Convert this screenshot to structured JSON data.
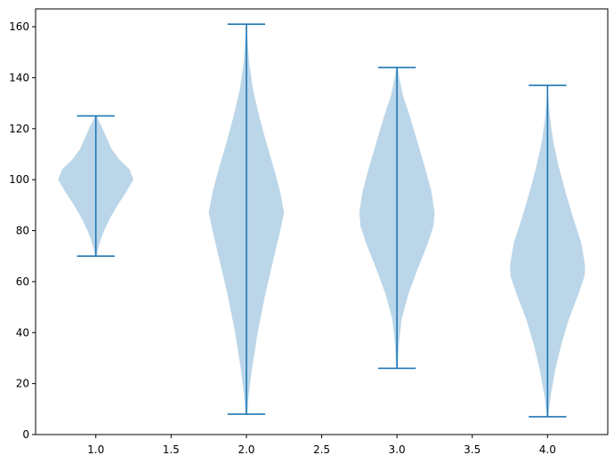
{
  "chart_data": {
    "type": "violin",
    "title": "",
    "xlabel": "",
    "ylabel": "",
    "xlim": [
      0.6,
      4.4
    ],
    "ylim": [
      0,
      167
    ],
    "xticks": [
      1.0,
      1.5,
      2.0,
      2.5,
      3.0,
      3.5,
      4.0
    ],
    "xtick_labels": [
      "1.0",
      "1.5",
      "2.0",
      "2.5",
      "3.0",
      "3.5",
      "4.0"
    ],
    "yticks": [
      0,
      20,
      40,
      60,
      80,
      100,
      120,
      140,
      160
    ],
    "ytick_labels": [
      "0",
      "20",
      "40",
      "60",
      "80",
      "100",
      "120",
      "140",
      "160"
    ],
    "grid": false,
    "color": "#1f77b4",
    "series": [
      {
        "position": 1,
        "min": 70,
        "max": 125,
        "profile": [
          [
            70,
            0.02
          ],
          [
            73,
            0.06
          ],
          [
            76,
            0.12
          ],
          [
            80,
            0.22
          ],
          [
            85,
            0.38
          ],
          [
            90,
            0.58
          ],
          [
            95,
            0.8
          ],
          [
            100,
            1.0
          ],
          [
            104,
            0.9
          ],
          [
            108,
            0.62
          ],
          [
            112,
            0.42
          ],
          [
            116,
            0.3
          ],
          [
            120,
            0.18
          ],
          [
            123,
            0.08
          ],
          [
            125,
            0.02
          ]
        ]
      },
      {
        "position": 2,
        "min": 8,
        "max": 161,
        "profile": [
          [
            8,
            0.02
          ],
          [
            15,
            0.06
          ],
          [
            25,
            0.14
          ],
          [
            40,
            0.3
          ],
          [
            55,
            0.5
          ],
          [
            70,
            0.74
          ],
          [
            80,
            0.9
          ],
          [
            87,
            1.0
          ],
          [
            95,
            0.9
          ],
          [
            105,
            0.72
          ],
          [
            115,
            0.52
          ],
          [
            125,
            0.34
          ],
          [
            135,
            0.18
          ],
          [
            145,
            0.08
          ],
          [
            155,
            0.03
          ],
          [
            161,
            0.01
          ]
        ]
      },
      {
        "position": 3,
        "min": 26,
        "max": 144,
        "profile": [
          [
            26,
            0.02
          ],
          [
            35,
            0.05
          ],
          [
            45,
            0.12
          ],
          [
            55,
            0.3
          ],
          [
            65,
            0.55
          ],
          [
            75,
            0.82
          ],
          [
            82,
            0.97
          ],
          [
            87,
            1.0
          ],
          [
            95,
            0.92
          ],
          [
            105,
            0.74
          ],
          [
            115,
            0.54
          ],
          [
            125,
            0.34
          ],
          [
            133,
            0.16
          ],
          [
            140,
            0.06
          ],
          [
            144,
            0.02
          ]
        ]
      },
      {
        "position": 4,
        "min": 7,
        "max": 137,
        "profile": [
          [
            7,
            0.02
          ],
          [
            15,
            0.08
          ],
          [
            25,
            0.2
          ],
          [
            35,
            0.36
          ],
          [
            45,
            0.56
          ],
          [
            55,
            0.82
          ],
          [
            62,
            0.98
          ],
          [
            66,
            1.0
          ],
          [
            75,
            0.9
          ],
          [
            85,
            0.68
          ],
          [
            95,
            0.48
          ],
          [
            105,
            0.3
          ],
          [
            115,
            0.15
          ],
          [
            125,
            0.06
          ],
          [
            132,
            0.02
          ],
          [
            137,
            0.01
          ]
        ]
      }
    ]
  }
}
